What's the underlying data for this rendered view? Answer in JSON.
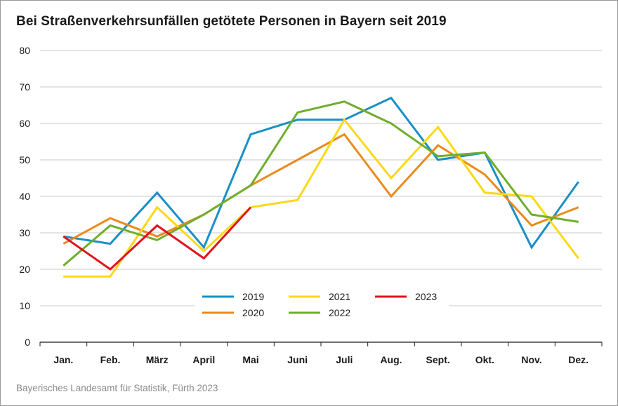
{
  "title": "Bei Straßenverkehrsunfällen getötete Personen in Bayern seit 2019",
  "source": "Bayerisches Landesamt für Statistik, Fürth 2023",
  "chart_data": {
    "type": "line",
    "categories": [
      "Jan.",
      "Feb.",
      "März",
      "April",
      "Mai",
      "Juni",
      "Juli",
      "Aug.",
      "Sept.",
      "Okt.",
      "Nov.",
      "Dez."
    ],
    "ylim": [
      0,
      80
    ],
    "yticks": [
      0,
      10,
      20,
      30,
      40,
      50,
      60,
      70,
      80
    ],
    "grid": true,
    "legend_position": "bottom-center",
    "series": [
      {
        "name": "2019",
        "color": "#1a8fc7",
        "values": [
          29,
          27,
          41,
          26,
          57,
          61,
          61,
          67,
          50,
          52,
          26,
          44
        ]
      },
      {
        "name": "2020",
        "color": "#ea8b1c",
        "values": [
          27,
          34,
          29,
          35,
          43,
          50,
          57,
          40,
          54,
          46,
          32,
          37
        ]
      },
      {
        "name": "2021",
        "color": "#fbd915",
        "values": [
          18,
          18,
          37,
          25,
          37,
          39,
          61,
          45,
          59,
          41,
          40,
          23
        ]
      },
      {
        "name": "2022",
        "color": "#6fae2d",
        "values": [
          21,
          32,
          28,
          35,
          43,
          63,
          66,
          60,
          51,
          52,
          35,
          33
        ]
      },
      {
        "name": "2023",
        "color": "#e0131c",
        "values": [
          29,
          20,
          32,
          23,
          37,
          null,
          null,
          null,
          null,
          null,
          null,
          null
        ]
      }
    ]
  }
}
